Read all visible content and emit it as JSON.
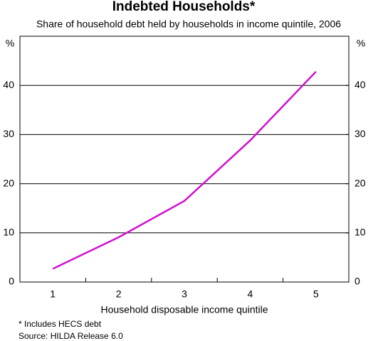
{
  "chart_data": {
    "type": "line",
    "title": "Indebted Households*",
    "subtitle": "Share of household debt held by households in income quintile, 2006",
    "x_label": "Household disposable income quintile",
    "y_unit": "%",
    "y2_unit": "%",
    "categories": [
      "1",
      "2",
      "3",
      "4",
      "5"
    ],
    "values": [
      2.7,
      9.1,
      16.5,
      28.8,
      42.8
    ],
    "color": "#d010d0",
    "ylim": [
      0,
      50
    ],
    "yticks": [
      0,
      10,
      20,
      30,
      40
    ],
    "y2lim": [
      0,
      50
    ],
    "y2ticks": [
      0,
      10,
      20,
      30,
      40
    ],
    "grid": true,
    "notes": [
      "*   Includes HECS debt",
      "Source: HILDA Release 6.0"
    ]
  }
}
